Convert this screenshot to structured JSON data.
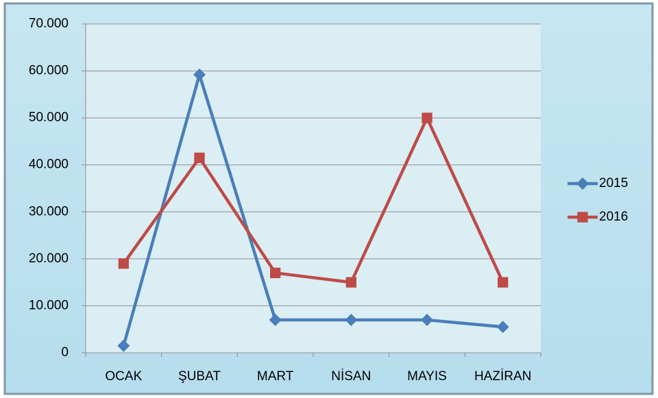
{
  "chart_data": {
    "type": "line",
    "categories": [
      "OCAK",
      "ŞUBAT",
      "MART",
      "NİSAN",
      "MAYIS",
      "HAZİRAN"
    ],
    "series": [
      {
        "name": "2015",
        "color": "#4a7ebb",
        "marker": "diamond",
        "values": [
          1500,
          59200,
          7000,
          7000,
          7000,
          5500
        ]
      },
      {
        "name": "2016",
        "color": "#be4b48",
        "marker": "square",
        "values": [
          19000,
          41500,
          17000,
          15000,
          50000,
          15000
        ]
      }
    ],
    "ylim": [
      0,
      70000
    ],
    "yticks": [
      0,
      {
        "value": 10000,
        "label": "10.000"
      },
      {
        "value": 20000,
        "label": "20.000"
      },
      {
        "value": 30000,
        "label": "30.000"
      },
      {
        "value": 40000,
        "label": "40.000"
      },
      {
        "value": 50000,
        "label": "50.000"
      },
      {
        "value": 60000,
        "label": "60.000"
      },
      {
        "value": 70000,
        "label": "70.000"
      }
    ],
    "grid": true,
    "legend": "right"
  }
}
